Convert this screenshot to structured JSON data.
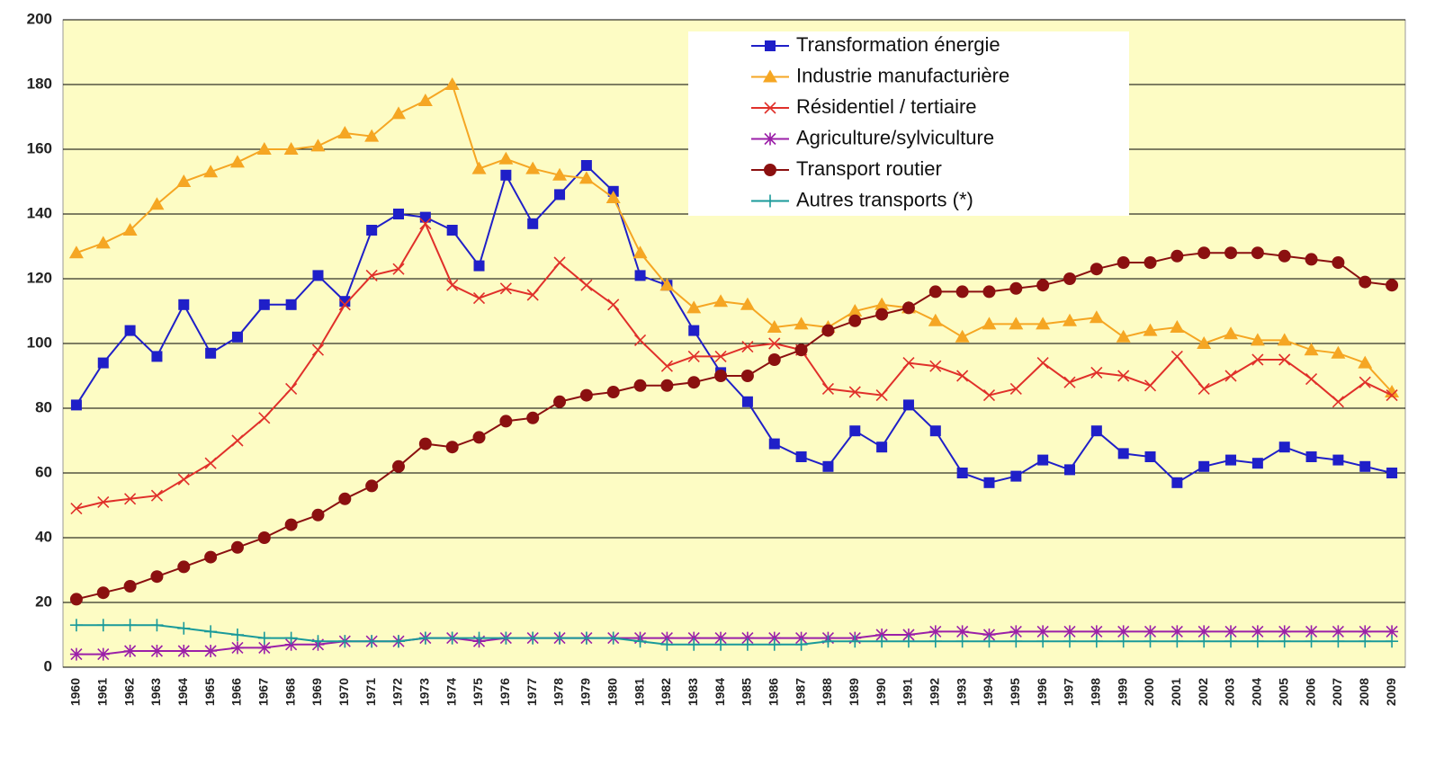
{
  "chart_data": {
    "type": "line",
    "categories": [
      "1960",
      "1961",
      "1962",
      "1963",
      "1964",
      "1965",
      "1966",
      "1967",
      "1968",
      "1969",
      "1970",
      "1971",
      "1972",
      "1973",
      "1974",
      "1975",
      "1976",
      "1977",
      "1978",
      "1979",
      "1980",
      "1981",
      "1982",
      "1983",
      "1984",
      "1985",
      "1986",
      "1987",
      "1988",
      "1989",
      "1990",
      "1991",
      "1992",
      "1993",
      "1994",
      "1995",
      "1996",
      "1997",
      "1998",
      "1999",
      "2000",
      "2001",
      "2002",
      "2003",
      "2004",
      "2005",
      "2006",
      "2007",
      "2008",
      "2009"
    ],
    "series": [
      {
        "name": "Transformation énergie",
        "color": "#1f1fc8",
        "marker": "square",
        "values": [
          81,
          94,
          104,
          96,
          112,
          97,
          102,
          112,
          112,
          121,
          113,
          135,
          140,
          139,
          135,
          124,
          152,
          137,
          146,
          155,
          147,
          121,
          118,
          104,
          91,
          82,
          69,
          65,
          62,
          73,
          68,
          81,
          73,
          60,
          57,
          59,
          64,
          61,
          73,
          66,
          65,
          57,
          62,
          64,
          63,
          68,
          65,
          64,
          62,
          60
        ]
      },
      {
        "name": "Industrie manufacturière",
        "color": "#f5a623",
        "marker": "triangle",
        "values": [
          128,
          131,
          135,
          143,
          150,
          153,
          156,
          160,
          160,
          161,
          165,
          164,
          171,
          175,
          180,
          154,
          157,
          154,
          152,
          151,
          145,
          128,
          118,
          111,
          113,
          112,
          105,
          106,
          105,
          110,
          112,
          111,
          107,
          102,
          106,
          106,
          106,
          107,
          108,
          102,
          104,
          105,
          100,
          103,
          101,
          101,
          98,
          97,
          94,
          85
        ]
      },
      {
        "name": "Résidentiel / tertiaire",
        "color": "#e0302a",
        "marker": "x",
        "values": [
          49,
          51,
          52,
          53,
          58,
          63,
          70,
          77,
          86,
          98,
          112,
          121,
          123,
          137,
          118,
          114,
          117,
          115,
          125,
          118,
          112,
          101,
          93,
          96,
          96,
          99,
          100,
          98,
          86,
          85,
          84,
          94,
          93,
          90,
          84,
          86,
          94,
          88,
          91,
          90,
          87,
          96,
          86,
          90,
          95,
          95,
          89,
          82,
          88,
          84
        ]
      },
      {
        "name": "Agriculture/sylviculture",
        "color": "#9b1fa8",
        "marker": "star",
        "values": [
          4,
          4,
          5,
          5,
          5,
          5,
          6,
          6,
          7,
          7,
          8,
          8,
          8,
          9,
          9,
          8,
          9,
          9,
          9,
          9,
          9,
          9,
          9,
          9,
          9,
          9,
          9,
          9,
          9,
          9,
          10,
          10,
          11,
          11,
          10,
          11,
          11,
          11,
          11,
          11,
          11,
          11,
          11,
          11,
          11,
          11,
          11,
          11,
          11,
          11
        ]
      },
      {
        "name": "Transport routier",
        "color": "#8b1010",
        "marker": "circle",
        "values": [
          21,
          23,
          25,
          28,
          31,
          34,
          37,
          40,
          44,
          47,
          52,
          56,
          62,
          69,
          68,
          71,
          76,
          77,
          82,
          84,
          85,
          87,
          87,
          88,
          90,
          90,
          95,
          98,
          104,
          107,
          109,
          111,
          116,
          116,
          116,
          117,
          118,
          120,
          123,
          125,
          125,
          127,
          128,
          128,
          128,
          127,
          126,
          125,
          119,
          118
        ]
      },
      {
        "name": "Autres transports (*)",
        "color": "#1a9a9a",
        "marker": "plus",
        "values": [
          13,
          13,
          13,
          13,
          12,
          11,
          10,
          9,
          9,
          8,
          8,
          8,
          8,
          9,
          9,
          9,
          9,
          9,
          9,
          9,
          9,
          8,
          7,
          7,
          7,
          7,
          7,
          7,
          8,
          8,
          8,
          8,
          8,
          8,
          8,
          8,
          8,
          8,
          8,
          8,
          8,
          8,
          8,
          8,
          8,
          8,
          8,
          8,
          8,
          8
        ]
      }
    ],
    "ylim": [
      0,
      200
    ],
    "yticks": [
      0,
      20,
      40,
      60,
      80,
      100,
      120,
      140,
      160,
      180,
      200
    ],
    "grid": true,
    "legend": "top-right"
  }
}
